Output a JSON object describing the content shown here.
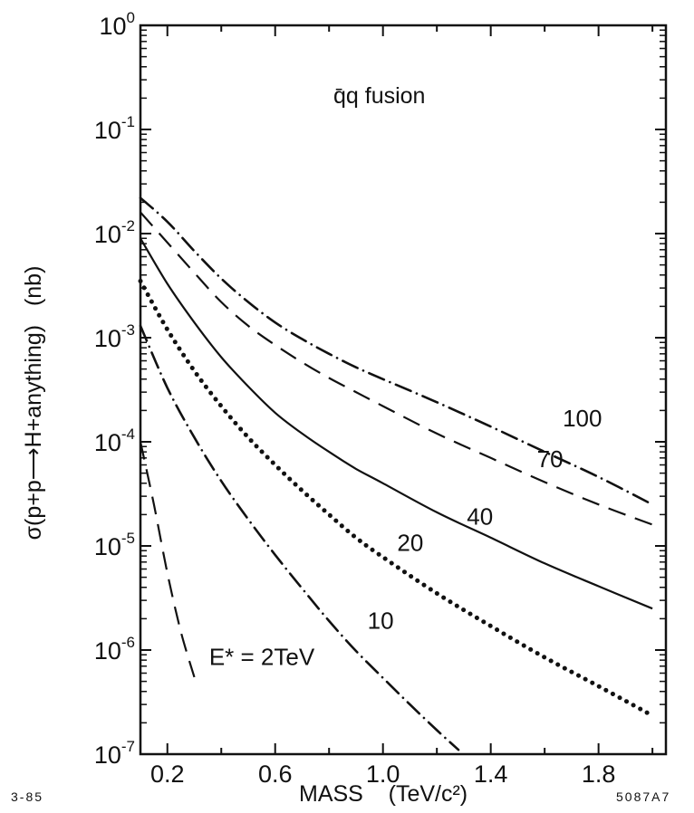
{
  "chart_data": {
    "type": "line",
    "title": "q̄q fusion",
    "xlabel": "MASS    (TeV/c²)",
    "ylabel": "σ(p+p⟶H+anything)   (nb)",
    "xlim": [
      0.1,
      2.05
    ],
    "ylim_log10": [
      -7,
      0
    ],
    "y_scale": "log",
    "x_ticks": [
      "0.2",
      "0.6",
      "1.0",
      "1.4",
      "1.8"
    ],
    "y_ticks": [
      {
        "base": "10",
        "exp": "0",
        "value": 1
      },
      {
        "base": "10",
        "exp": "-1",
        "value": 0.1
      },
      {
        "base": "10",
        "exp": "-2",
        "value": 0.01
      },
      {
        "base": "10",
        "exp": "-3",
        "value": 0.001
      },
      {
        "base": "10",
        "exp": "-4",
        "value": 0.0001
      },
      {
        "base": "10",
        "exp": "-5",
        "value": 1e-05
      },
      {
        "base": "10",
        "exp": "-6",
        "value": 1e-06
      },
      {
        "base": "10",
        "exp": "-7",
        "value": 1e-07
      }
    ],
    "series": [
      {
        "label": "E* = 2TeV",
        "style": "dashed",
        "x": [
          0.1,
          0.15,
          0.2,
          0.25,
          0.3
        ],
        "y": [
          0.0001,
          2.5e-05,
          5.5e-06,
          1.5e-06,
          5.5e-07
        ]
      },
      {
        "label": "10",
        "style": "dashdot",
        "x": [
          0.1,
          0.2,
          0.3,
          0.4,
          0.5,
          0.6,
          0.7,
          0.8,
          0.9,
          1.0,
          1.1,
          1.2,
          1.28
        ],
        "y": [
          0.0013,
          0.00033,
          0.00011,
          4.2e-05,
          1.8e-05,
          8.2e-06,
          3.9e-06,
          1.9e-06,
          9.8e-07,
          5.4e-07,
          3e-07,
          1.7e-07,
          1.1e-07
        ]
      },
      {
        "label": "20",
        "style": "dotted",
        "x": [
          0.1,
          0.2,
          0.3,
          0.4,
          0.5,
          0.6,
          0.7,
          0.8,
          0.9,
          1.0,
          1.2,
          1.4,
          1.6,
          1.8,
          1.98
        ],
        "y": [
          0.0035,
          0.0012,
          0.00048,
          0.00022,
          0.00011,
          6e-05,
          3.4e-05,
          2e-05,
          1.2e-05,
          7.8e-06,
          3.5e-06,
          1.7e-06,
          8.5e-07,
          4.5e-07,
          2.5e-07
        ]
      },
      {
        "label": "40",
        "style": "solid",
        "x": [
          0.1,
          0.2,
          0.3,
          0.4,
          0.5,
          0.6,
          0.7,
          0.8,
          0.9,
          1.0,
          1.2,
          1.4,
          1.6,
          1.8,
          2.0
        ],
        "y": [
          0.009,
          0.0033,
          0.0014,
          0.00065,
          0.00034,
          0.00019,
          0.00012,
          8e-05,
          5.5e-05,
          4e-05,
          2.1e-05,
          1.2e-05,
          6.8e-06,
          4.1e-06,
          2.5e-06
        ]
      },
      {
        "label": "70",
        "style": "dashed",
        "x": [
          0.1,
          0.2,
          0.3,
          0.4,
          0.5,
          0.6,
          0.7,
          0.8,
          0.9,
          1.0,
          1.2,
          1.4,
          1.6,
          1.8,
          2.0
        ],
        "y": [
          0.016,
          0.0082,
          0.0042,
          0.0022,
          0.0013,
          0.00085,
          0.00058,
          0.00041,
          0.0003,
          0.00022,
          0.00012,
          7e-05,
          4.1e-05,
          2.5e-05,
          1.6e-05
        ]
      },
      {
        "label": "100",
        "style": "dashdot",
        "x": [
          0.1,
          0.2,
          0.3,
          0.4,
          0.5,
          0.6,
          0.7,
          0.8,
          0.9,
          1.0,
          1.2,
          1.4,
          1.6,
          1.8,
          2.0
        ],
        "y": [
          0.022,
          0.013,
          0.0068,
          0.0037,
          0.0022,
          0.0014,
          0.00097,
          0.0007,
          0.00052,
          0.0004,
          0.00024,
          0.00014,
          8e-05,
          4.6e-05,
          2.5e-05
        ]
      }
    ],
    "grid": false,
    "legend": "inline labels on curves"
  },
  "footer": {
    "left_note": "3-85",
    "right_note": "5087A7"
  }
}
